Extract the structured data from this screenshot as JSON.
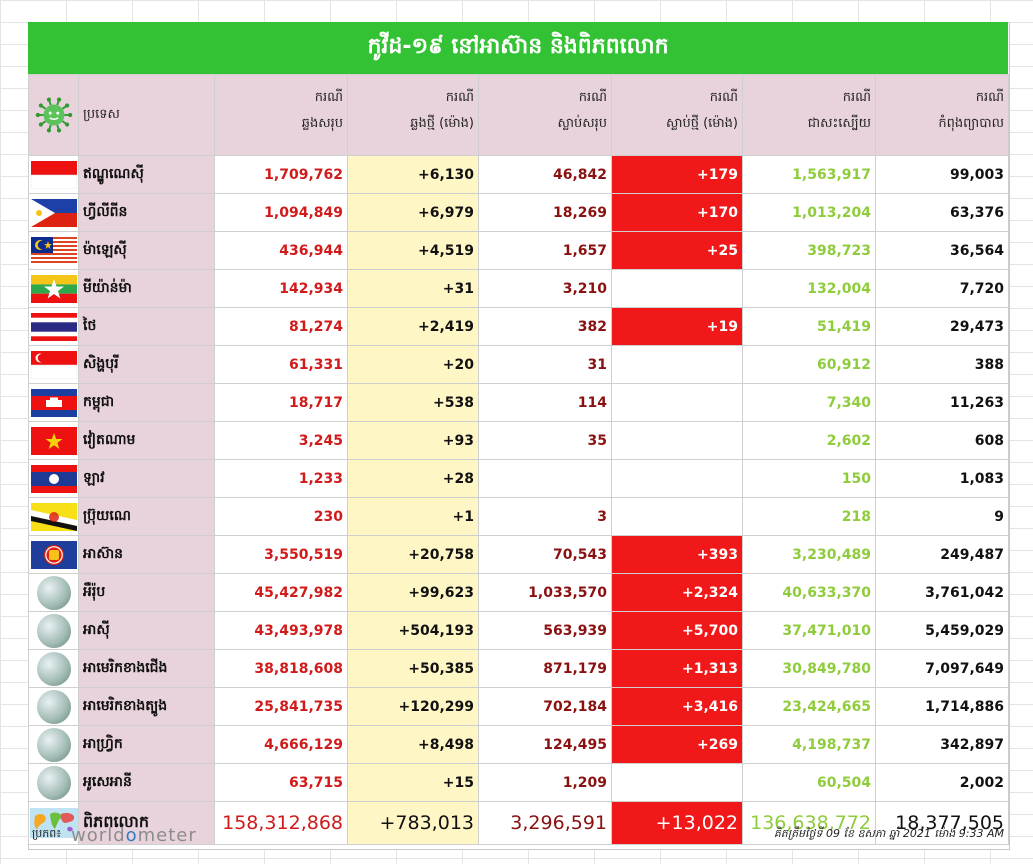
{
  "title": "កូវីដ-១៩ នៅអាស៊ាន និងពិភពលោក",
  "header": {
    "country": "ប្រទេស",
    "cols": [
      [
        "ករណី",
        "ឆ្លងសរុប"
      ],
      [
        "ករណី",
        "ឆ្លងថ្មី (ម៉ោង)"
      ],
      [
        "ករណី",
        "ស្លាប់សរុប"
      ],
      [
        "ករណី",
        "ស្លាប់ថ្មី (ម៉ោង)"
      ],
      [
        "ករណី",
        "ជាសះស្បើយ"
      ],
      [
        "ករណី",
        "កំពុងព្យាបាល"
      ]
    ]
  },
  "rows": [
    {
      "flag": "indonesia",
      "name": "ឥណ្ឌូណេស៊ី",
      "total": "1,709,762",
      "new": "+6,130",
      "deaths": "46,842",
      "new_deaths": "+179",
      "recovered": "1,563,917",
      "active": "99,003"
    },
    {
      "flag": "philippines",
      "name": "ហ្វីលីពីន",
      "total": "1,094,849",
      "new": "+6,979",
      "deaths": "18,269",
      "new_deaths": "+170",
      "recovered": "1,013,204",
      "active": "63,376"
    },
    {
      "flag": "malaysia",
      "name": "ម៉ាឡេស៊ី",
      "total": "436,944",
      "new": "+4,519",
      "deaths": "1,657",
      "new_deaths": "+25",
      "recovered": "398,723",
      "active": "36,564"
    },
    {
      "flag": "myanmar",
      "name": "មីយ៉ាន់ម៉ា",
      "total": "142,934",
      "new": "+31",
      "deaths": "3,210",
      "new_deaths": "",
      "recovered": "132,004",
      "active": "7,720"
    },
    {
      "flag": "thailand",
      "name": "ថៃ",
      "total": "81,274",
      "new": "+2,419",
      "deaths": "382",
      "new_deaths": "+19",
      "recovered": "51,419",
      "active": "29,473"
    },
    {
      "flag": "singapore",
      "name": "សិង្ហបុរី",
      "total": "61,331",
      "new": "+20",
      "deaths": "31",
      "new_deaths": "",
      "recovered": "60,912",
      "active": "388"
    },
    {
      "flag": "cambodia",
      "name": "កម្ពុជា",
      "total": "18,717",
      "new": "+538",
      "deaths": "114",
      "new_deaths": "",
      "recovered": "7,340",
      "active": "11,263"
    },
    {
      "flag": "vietnam",
      "name": "វៀតណាម",
      "total": "3,245",
      "new": "+93",
      "deaths": "35",
      "new_deaths": "",
      "recovered": "2,602",
      "active": "608"
    },
    {
      "flag": "laos",
      "name": "ឡាវ",
      "total": "1,233",
      "new": "+28",
      "deaths": "",
      "new_deaths": "",
      "recovered": "150",
      "active": "1,083"
    },
    {
      "flag": "brunei",
      "name": "ប្រ៊ុយណេ",
      "total": "230",
      "new": "+1",
      "deaths": "3",
      "new_deaths": "",
      "recovered": "218",
      "active": "9"
    },
    {
      "flag": "asean",
      "name": "អាស៊ាន",
      "total": "3,550,519",
      "new": "+20,758",
      "deaths": "70,543",
      "new_deaths": "+393",
      "recovered": "3,230,489",
      "active": "249,487"
    },
    {
      "flag": "globe",
      "name": "អឺរ៉ុប",
      "total": "45,427,982",
      "new": "+99,623",
      "deaths": "1,033,570",
      "new_deaths": "+2,324",
      "recovered": "40,633,370",
      "active": "3,761,042"
    },
    {
      "flag": "globe",
      "name": "អាស៊ី",
      "total": "43,493,978",
      "new": "+504,193",
      "deaths": "563,939",
      "new_deaths": "+5,700",
      "recovered": "37,471,010",
      "active": "5,459,029"
    },
    {
      "flag": "globe",
      "name": "អាមេរិកខាងជើង",
      "total": "38,818,608",
      "new": "+50,385",
      "deaths": "871,179",
      "new_deaths": "+1,313",
      "recovered": "30,849,780",
      "active": "7,097,649"
    },
    {
      "flag": "globe",
      "name": "អាមេរិកខាងត្បូង",
      "total": "25,841,735",
      "new": "+120,299",
      "deaths": "702,184",
      "new_deaths": "+3,416",
      "recovered": "23,424,665",
      "active": "1,714,886"
    },
    {
      "flag": "globe",
      "name": "អាហ្វ្រិក",
      "total": "4,666,129",
      "new": "+8,498",
      "deaths": "124,495",
      "new_deaths": "+269",
      "recovered": "4,198,737",
      "active": "342,897"
    },
    {
      "flag": "globe",
      "name": "អូសេអានី",
      "total": "63,715",
      "new": "+15",
      "deaths": "1,209",
      "new_deaths": "",
      "recovered": "60,504",
      "active": "2,002"
    }
  ],
  "total": {
    "name": "ពិភពលោក",
    "total": "158,312,868",
    "new": "+783,013",
    "deaths": "3,296,591",
    "new_deaths": "+13,022",
    "recovered": "136,638,772",
    "active": "18,377,505"
  },
  "footer": {
    "source_label": "ប្រភព៖",
    "logo_parts": [
      "world",
      "o",
      "meter"
    ],
    "updated": "គិតត្រឹមថ្ងៃទី 09 ខែ ឧសភា ឆ្នាំ 2021 ម៉ោង 9:33 AM"
  },
  "colors": {
    "title_bg": "#33c233",
    "header_bg": "#e8d2dc",
    "new_cases_bg": "#fff6c6",
    "new_deaths_bg": "#f01818",
    "total_cases": "#d11a1a",
    "deaths": "#8a1111",
    "recovered": "#8fcc3c"
  }
}
